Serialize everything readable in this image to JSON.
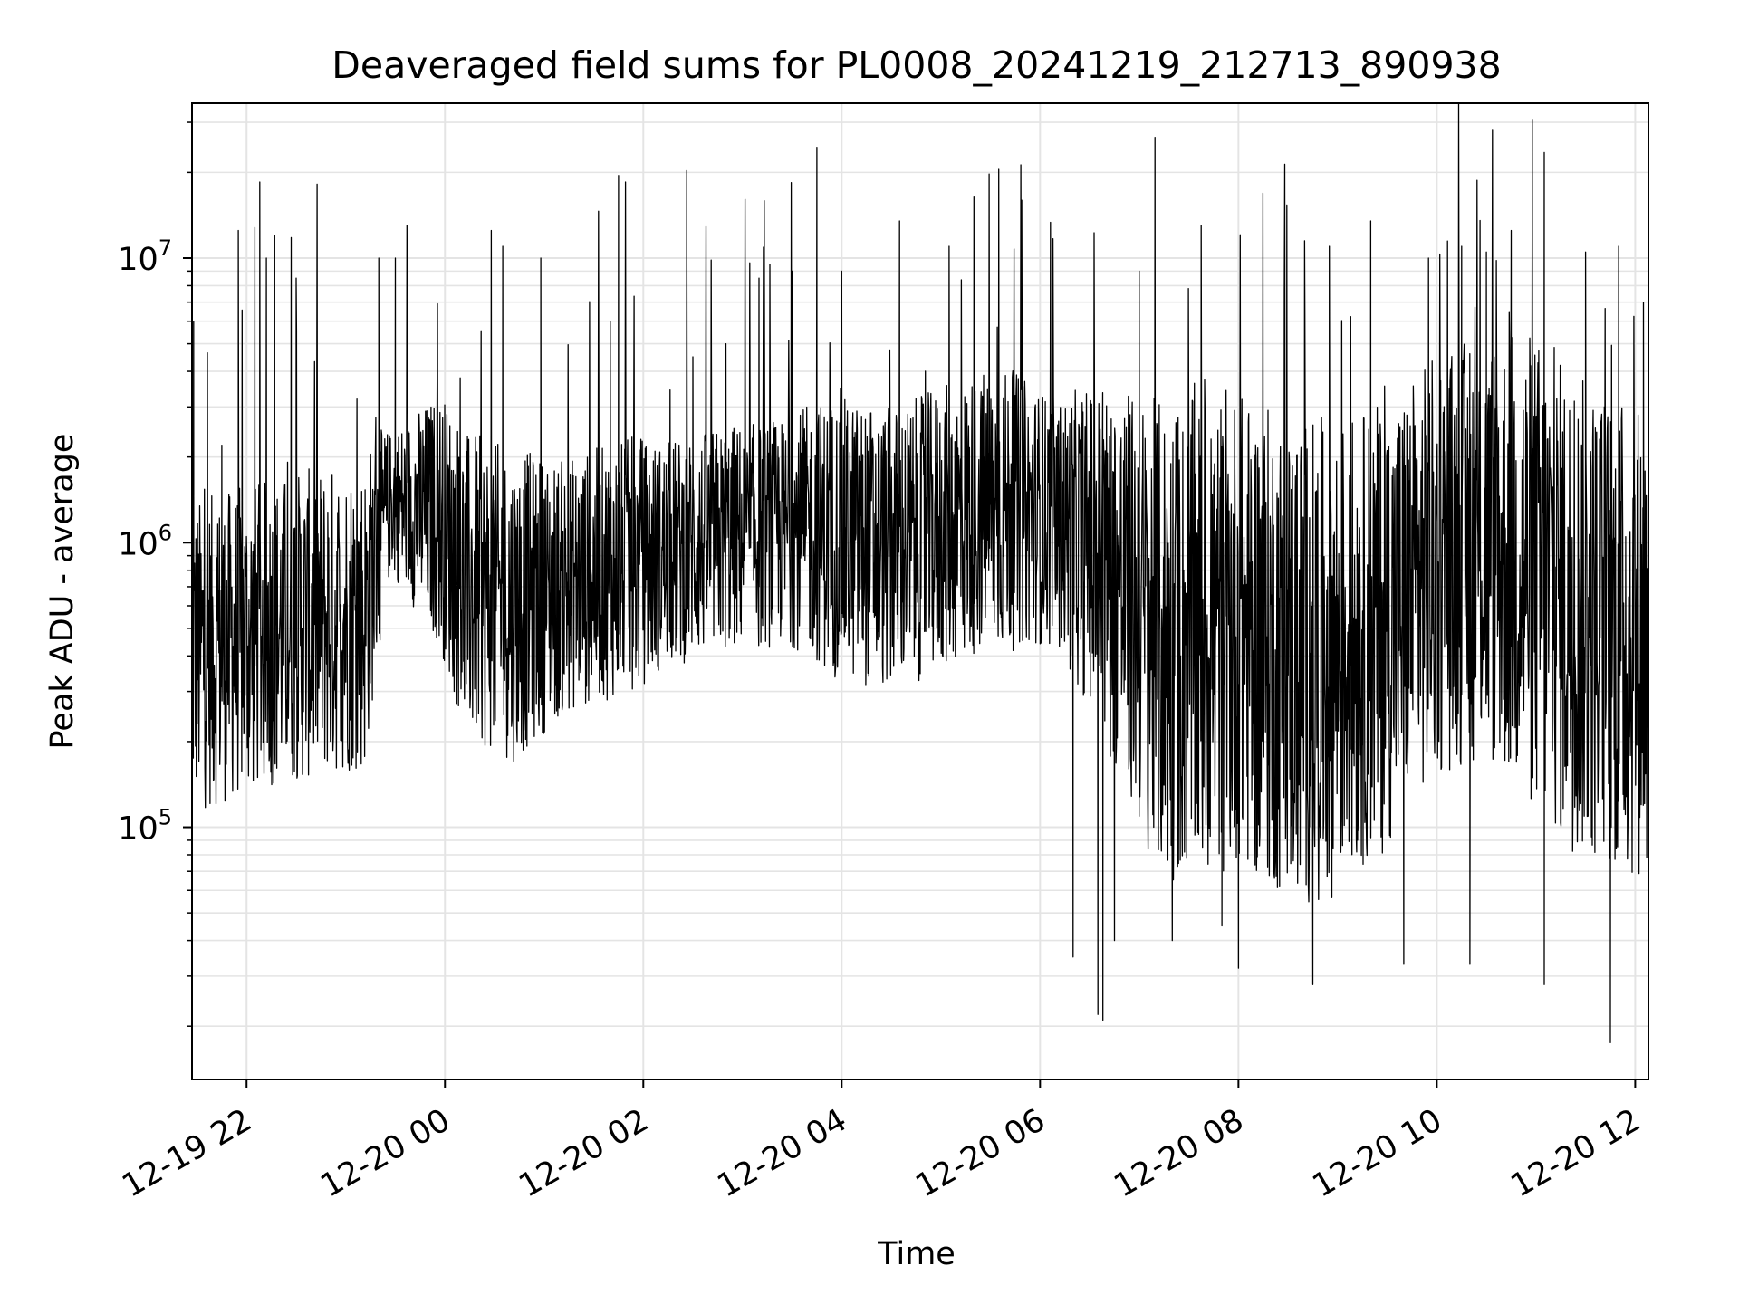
{
  "chart_data": {
    "type": "line",
    "title": "Deaveraged field sums for PL0008_20241219_212713_890938",
    "xlabel": "Time",
    "ylabel": "Peak ADU - average",
    "x_range": [
      "12-19 21:27",
      "12-20 12:08"
    ],
    "xticks": [
      "12-19 22",
      "12-20 00",
      "12-20 02",
      "12-20 04",
      "12-20 06",
      "12-20 08",
      "12-20 10",
      "12-20 12"
    ],
    "yscale": "log",
    "ylim": [
      13000,
      35000000
    ],
    "yticks": [
      {
        "base": "10",
        "exp": "5",
        "value": 100000
      },
      {
        "base": "10",
        "exp": "6",
        "value": 1000000
      },
      {
        "base": "10",
        "exp": "7",
        "value": 10000000
      }
    ],
    "grid": true,
    "line_color": "#000000",
    "series": [
      {
        "sample_step_minutes": 15,
        "baseline": [
          400000,
          420000,
          450000,
          480000,
          500000,
          520000,
          540000,
          560000,
          1400000,
          1300000,
          1200000,
          700000,
          650000,
          600000,
          650000,
          700000,
          750000,
          800000,
          850000,
          900000,
          950000,
          1000000,
          1050000,
          1050000,
          1100000,
          1100000,
          1050000,
          1000000,
          950000,
          1000000,
          1100000,
          1200000,
          1300000,
          1300000,
          1250000,
          1150000,
          1000000,
          800000,
          600000,
          450000,
          450000,
          450000,
          500000,
          450000,
          400000,
          380000,
          400000,
          450000,
          500000,
          650000,
          800000,
          900000,
          950000,
          900000,
          800000,
          650000,
          550000,
          500000,
          450000,
          500000
        ],
        "spread": [
          0.55,
          0.55,
          0.55,
          0.55,
          0.55,
          0.55,
          0.55,
          0.55,
          0.25,
          0.35,
          0.45,
          0.55,
          0.55,
          0.55,
          0.5,
          0.45,
          0.45,
          0.45,
          0.45,
          0.4,
          0.4,
          0.4,
          0.4,
          0.4,
          0.4,
          0.45,
          0.5,
          0.5,
          0.5,
          0.5,
          0.5,
          0.5,
          0.5,
          0.5,
          0.45,
          0.45,
          0.55,
          0.65,
          0.75,
          0.85,
          0.85,
          0.85,
          0.85,
          0.85,
          0.85,
          0.85,
          0.85,
          0.8,
          0.8,
          0.75,
          0.75,
          0.75,
          0.75,
          0.8,
          0.85,
          0.85,
          0.85,
          0.85,
          0.85,
          0.85
        ],
        "spikes": [
          {
            "t": "12-19 21:28",
            "v": 6000000
          },
          {
            "t": "12-19 21:45",
            "v": 2200000
          },
          {
            "t": "12-19 21:55",
            "v": 12500000
          },
          {
            "t": "12-19 22:05",
            "v": 12800000
          },
          {
            "t": "12-19 22:08",
            "v": 18500000
          },
          {
            "t": "12-19 22:12",
            "v": 10000000
          },
          {
            "t": "12-19 22:17",
            "v": 12000000
          },
          {
            "t": "12-19 22:27",
            "v": 11800000
          },
          {
            "t": "12-19 22:30",
            "v": 8500000
          },
          {
            "t": "12-19 23:20",
            "v": 10000000
          },
          {
            "t": "12-19 23:30",
            "v": 10000000
          },
          {
            "t": "12-19 23:37",
            "v": 13000000
          },
          {
            "t": "12-20 00:28",
            "v": 12500000
          },
          {
            "t": "12-20 00:35",
            "v": 11000000
          },
          {
            "t": "12-20 00:58",
            "v": 10000000
          },
          {
            "t": "12-20 01:45",
            "v": 19500000
          },
          {
            "t": "12-20 01:40",
            "v": 6000000
          },
          {
            "t": "12-20 02:30",
            "v": 4500000
          },
          {
            "t": "12-20 02:50",
            "v": 5000000
          },
          {
            "t": "12-20 03:10",
            "v": 8500000
          },
          {
            "t": "12-20 03:30",
            "v": 9000000
          },
          {
            "t": "12-20 03:45",
            "v": 24500000
          },
          {
            "t": "12-20 04:00",
            "v": 9000000
          },
          {
            "t": "12-20 04:35",
            "v": 13500000
          },
          {
            "t": "12-20 05:05",
            "v": 11000000
          },
          {
            "t": "12-20 05:20",
            "v": 16500000
          },
          {
            "t": "12-20 05:35",
            "v": 20500000
          },
          {
            "t": "12-20 06:25",
            "v": 2200000
          },
          {
            "t": "12-20 07:00",
            "v": 9000000
          },
          {
            "t": "12-20 08:40",
            "v": 11500000
          },
          {
            "t": "12-20 08:55",
            "v": 11000000
          },
          {
            "t": "12-20 09:20",
            "v": 13500000
          },
          {
            "t": "12-20 09:55",
            "v": 10000000
          },
          {
            "t": "12-20 10:15",
            "v": 11000000
          },
          {
            "t": "12-20 10:30",
            "v": 10500000
          },
          {
            "t": "12-20 10:45",
            "v": 12500000
          },
          {
            "t": "12-20 11:05",
            "v": 23500000
          },
          {
            "t": "12-20 11:30",
            "v": 10500000
          },
          {
            "t": "12-20 11:50",
            "v": 11000000
          },
          {
            "t": "12-20 12:05",
            "v": 7000000
          }
        ],
        "dips": [
          {
            "t": "12-20 06:20",
            "v": 35000
          },
          {
            "t": "12-20 06:35",
            "v": 22000
          },
          {
            "t": "12-20 06:38",
            "v": 21000
          },
          {
            "t": "12-20 06:45",
            "v": 40000
          },
          {
            "t": "12-20 07:20",
            "v": 40000
          },
          {
            "t": "12-20 07:50",
            "v": 45000
          },
          {
            "t": "12-20 08:00",
            "v": 32000
          },
          {
            "t": "12-20 08:45",
            "v": 28000
          },
          {
            "t": "12-20 09:40",
            "v": 33000
          },
          {
            "t": "12-20 10:20",
            "v": 33000
          },
          {
            "t": "12-20 11:05",
            "v": 28000
          },
          {
            "t": "12-20 11:45",
            "v": 17500
          }
        ]
      }
    ]
  }
}
